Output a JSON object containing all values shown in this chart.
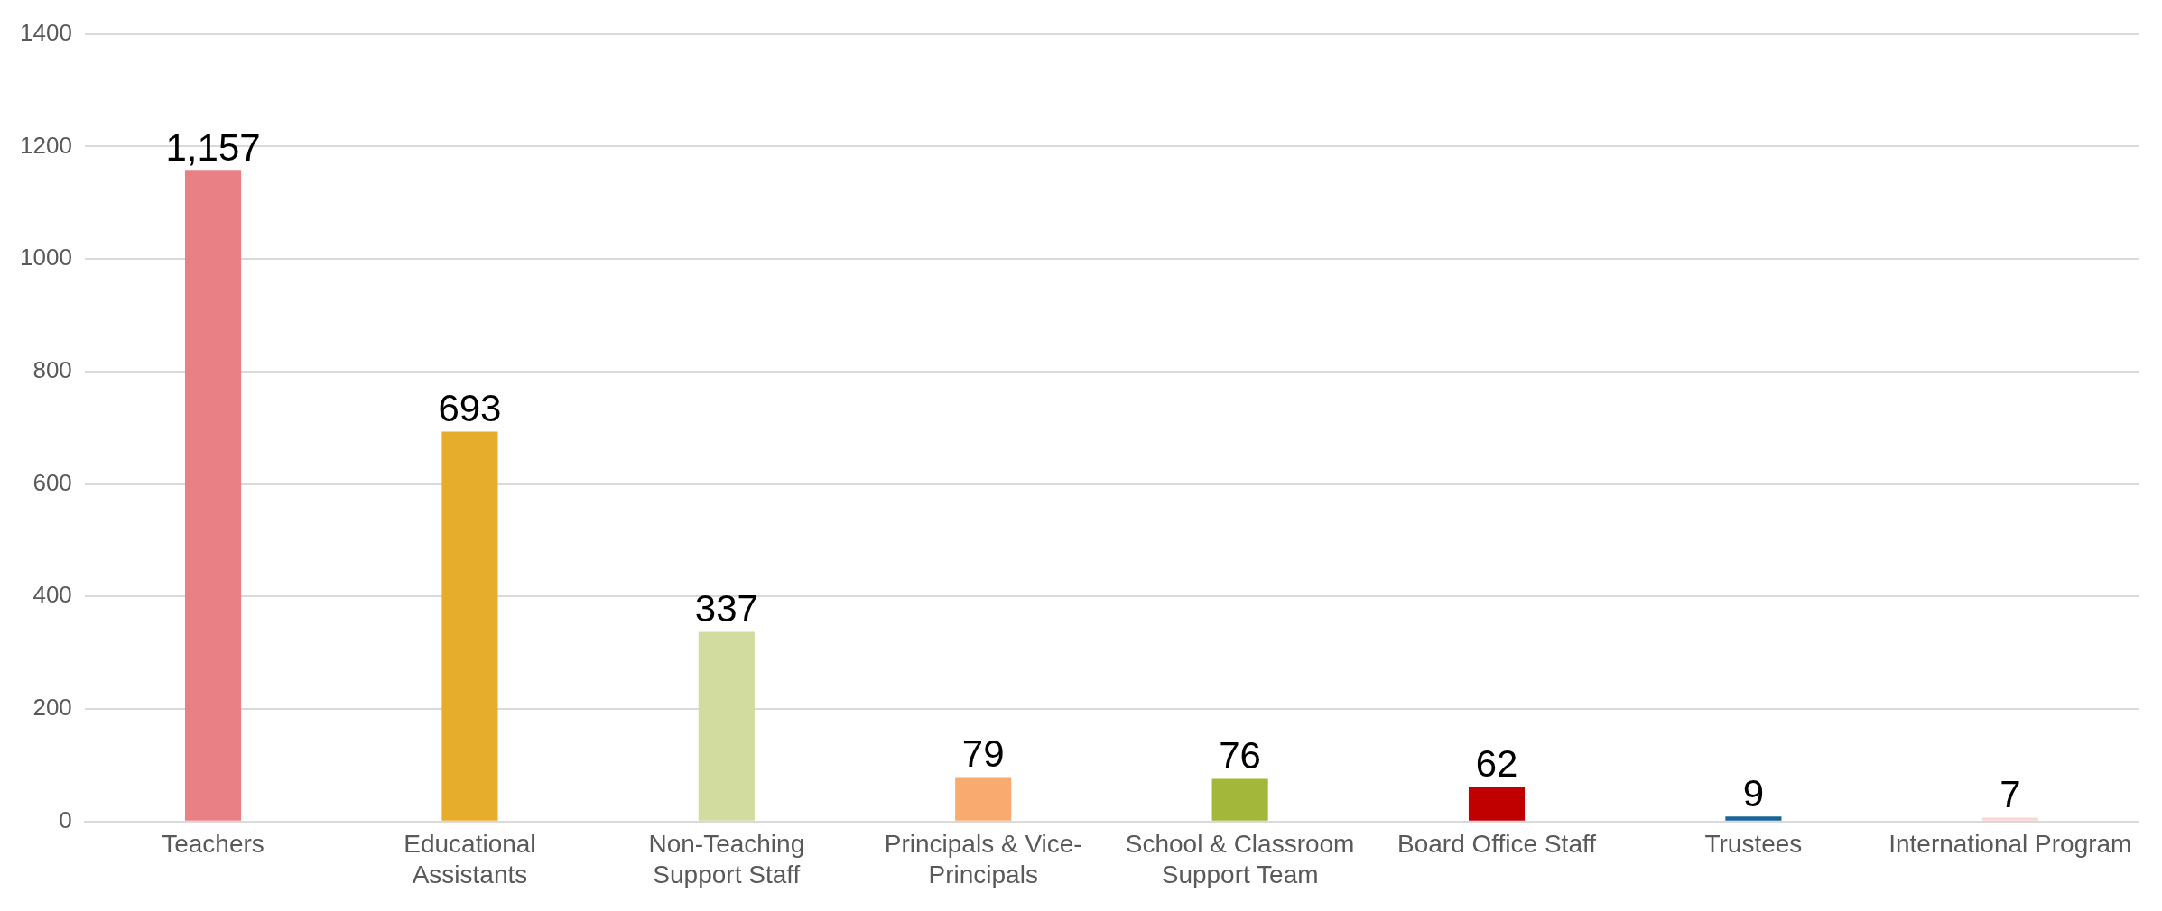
{
  "chart_data": {
    "type": "bar",
    "categories": [
      "Teachers",
      "Educational Assistants",
      "Non-Teaching Support Staff",
      "Principals & Vice-Principals",
      "School & Classroom Support Team",
      "Board Office Staff",
      "Trustees",
      "International Program"
    ],
    "values": [
      1157,
      693,
      337,
      79,
      76,
      62,
      9,
      7
    ],
    "colors": [
      "#e88085",
      "#e6ad2c",
      "#d3dc9f",
      "#f9aa6e",
      "#a3b83a",
      "#c00000",
      "#1a6497",
      "#f9d7d4"
    ],
    "ylim": [
      0,
      1400
    ],
    "yticks": [
      0,
      200,
      400,
      600,
      800,
      1000,
      1200,
      1400
    ],
    "value_labels": [
      "1,157",
      "693",
      "337",
      "79",
      "76",
      "62",
      "9",
      "7"
    ],
    "grid": "y",
    "legend": false
  }
}
